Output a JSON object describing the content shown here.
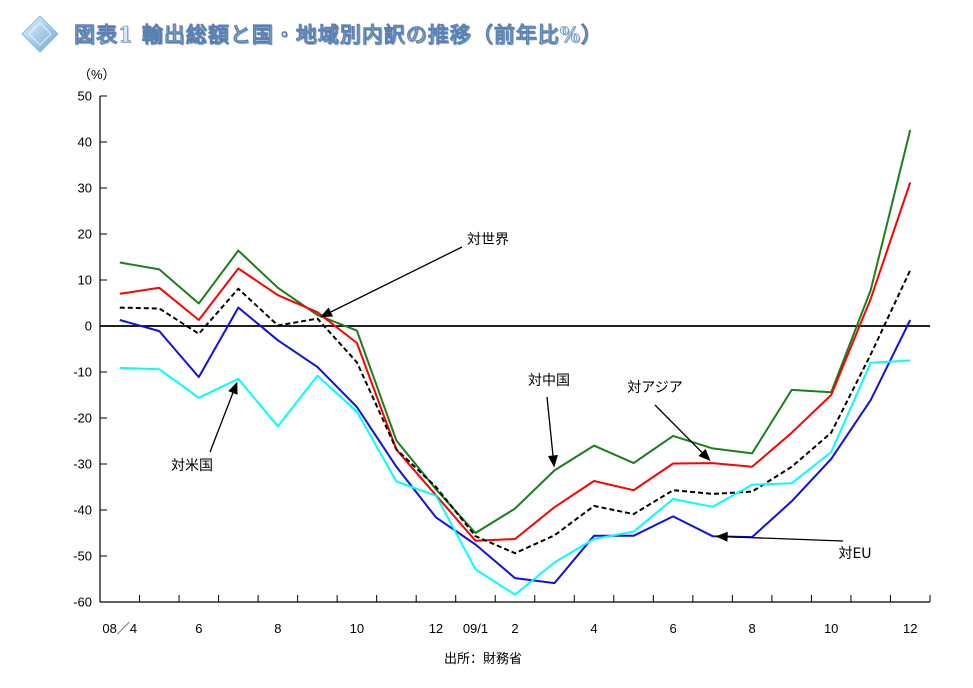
{
  "title": "図表1 輸出総額と国・地域別内訳の推移（前年比%）",
  "unit_label": "（%）",
  "source": "出所：財務省",
  "colors": {
    "world": "#000000",
    "china": "#1a7f1a",
    "asia": "#ff0000",
    "eu": "#1010e0",
    "us": "#00ffff",
    "title_fill": "#dbe8f8",
    "title_edge": "#5a7fb0"
  },
  "icons": {
    "title_marker": "diamond-icon"
  },
  "chart_data": {
    "type": "line",
    "title": "図表1 輸出総額と国・地域別内訳の推移（前年比%）",
    "xlabel": "",
    "ylabel": "（%）",
    "ylim": [
      -60,
      50
    ],
    "yticks": [
      50,
      40,
      30,
      20,
      10,
      0,
      -10,
      -20,
      -30,
      -40,
      -50,
      -60
    ],
    "ytick_labels": [
      "50",
      "40",
      "30",
      "20",
      "10",
      "0",
      "-10",
      "-20",
      "-30",
      "-40",
      "-50",
      "-60"
    ],
    "grid": false,
    "categories": [
      "2008/04",
      "2008/05",
      "2008/06",
      "2008/07",
      "2008/08",
      "2008/09",
      "2008/10",
      "2008/11",
      "2008/12",
      "2009/01",
      "2009/02",
      "2009/03",
      "2009/04",
      "2009/05",
      "2009/06",
      "2009/07",
      "2009/08",
      "2009/09",
      "2009/10",
      "2009/11",
      "2009/12"
    ],
    "tick_labels": [
      {
        "at": "2008/04",
        "label": "08／4"
      },
      {
        "at": "2008/06",
        "label": "6"
      },
      {
        "at": "2008/08",
        "label": "8"
      },
      {
        "at": "2008/10",
        "label": "10"
      },
      {
        "at": "2008/12",
        "label": "12"
      },
      {
        "at": "2009/01",
        "label": "09/1"
      },
      {
        "at": "2009/02",
        "label": "2"
      },
      {
        "at": "2009/04",
        "label": "4"
      },
      {
        "at": "2009/06",
        "label": "6"
      },
      {
        "at": "2009/08",
        "label": "8"
      },
      {
        "at": "2009/10",
        "label": "10"
      },
      {
        "at": "2009/12",
        "label": "12"
      }
    ],
    "series": [
      {
        "key": "china",
        "name": "対中国",
        "dash": false,
        "values": [
          13.8,
          12.3,
          4.9,
          16.4,
          8.3,
          2.4,
          -1.0,
          -24.9,
          -35.5,
          -45.0,
          -39.7,
          -31.4,
          -26.0,
          -29.8,
          -23.9,
          -26.6,
          -27.7,
          -13.9,
          -14.4,
          7.8,
          42.6
        ]
      },
      {
        "key": "asia",
        "name": "対アジア",
        "dash": false,
        "values": [
          7.0,
          8.3,
          1.3,
          12.5,
          6.7,
          3.0,
          -3.7,
          -26.9,
          -36.8,
          -46.7,
          -46.3,
          -39.4,
          -33.7,
          -35.7,
          -29.9,
          -29.8,
          -30.6,
          -23.2,
          -15.0,
          5.9,
          31.2
        ]
      },
      {
        "key": "world",
        "name": "対世界",
        "dash": true,
        "values": [
          4.0,
          3.8,
          -1.7,
          8.1,
          0.1,
          1.6,
          -7.9,
          -26.8,
          -35.0,
          -45.7,
          -49.4,
          -45.5,
          -39.1,
          -40.9,
          -35.7,
          -36.5,
          -36.0,
          -30.6,
          -23.2,
          -6.2,
          12.1
        ]
      },
      {
        "key": "eu",
        "name": "対EU",
        "dash": false,
        "values": [
          1.3,
          -1.1,
          -11.1,
          4.0,
          -3.1,
          -8.9,
          -17.6,
          -30.6,
          -41.6,
          -47.5,
          -54.8,
          -55.9,
          -45.6,
          -45.6,
          -41.4,
          -45.7,
          -45.9,
          -38.1,
          -28.9,
          -16.1,
          1.3
        ]
      },
      {
        "key": "us",
        "name": "対米国",
        "dash": false,
        "values": [
          -9.1,
          -9.4,
          -15.6,
          -11.5,
          -21.8,
          -10.8,
          -18.6,
          -33.8,
          -36.9,
          -52.9,
          -58.4,
          -51.4,
          -46.3,
          -44.7,
          -37.6,
          -39.3,
          -34.5,
          -34.2,
          -27.4,
          -8.0,
          -7.5
        ]
      }
    ],
    "annotations": [
      {
        "series": "world",
        "label": "対世界"
      },
      {
        "series": "china",
        "label": "対中国"
      },
      {
        "series": "asia",
        "label": "対アジア"
      },
      {
        "series": "us",
        "label": "対米国"
      },
      {
        "series": "eu",
        "label": "対EU"
      }
    ]
  }
}
